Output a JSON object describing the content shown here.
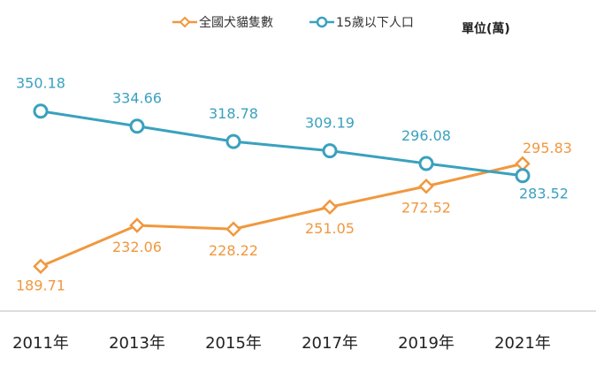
{
  "chart_data": {
    "type": "line",
    "categories": [
      "2011年",
      "2013年",
      "2015年",
      "2017年",
      "2019年",
      "2021年"
    ],
    "series": [
      {
        "name": "全國犬貓隻數",
        "color": "#F0983E",
        "marker": "diamond",
        "values": [
          189.71,
          232.06,
          228.22,
          251.05,
          272.52,
          295.83
        ]
      },
      {
        "name": "15歲以下人口",
        "color": "#3AA1BE",
        "marker": "circle",
        "values": [
          350.18,
          334.66,
          318.78,
          309.19,
          296.08,
          283.52
        ]
      }
    ],
    "unit": "單位(萬)",
    "ylim": [
      180,
      360
    ],
    "legend_position": "top",
    "grid": false
  }
}
